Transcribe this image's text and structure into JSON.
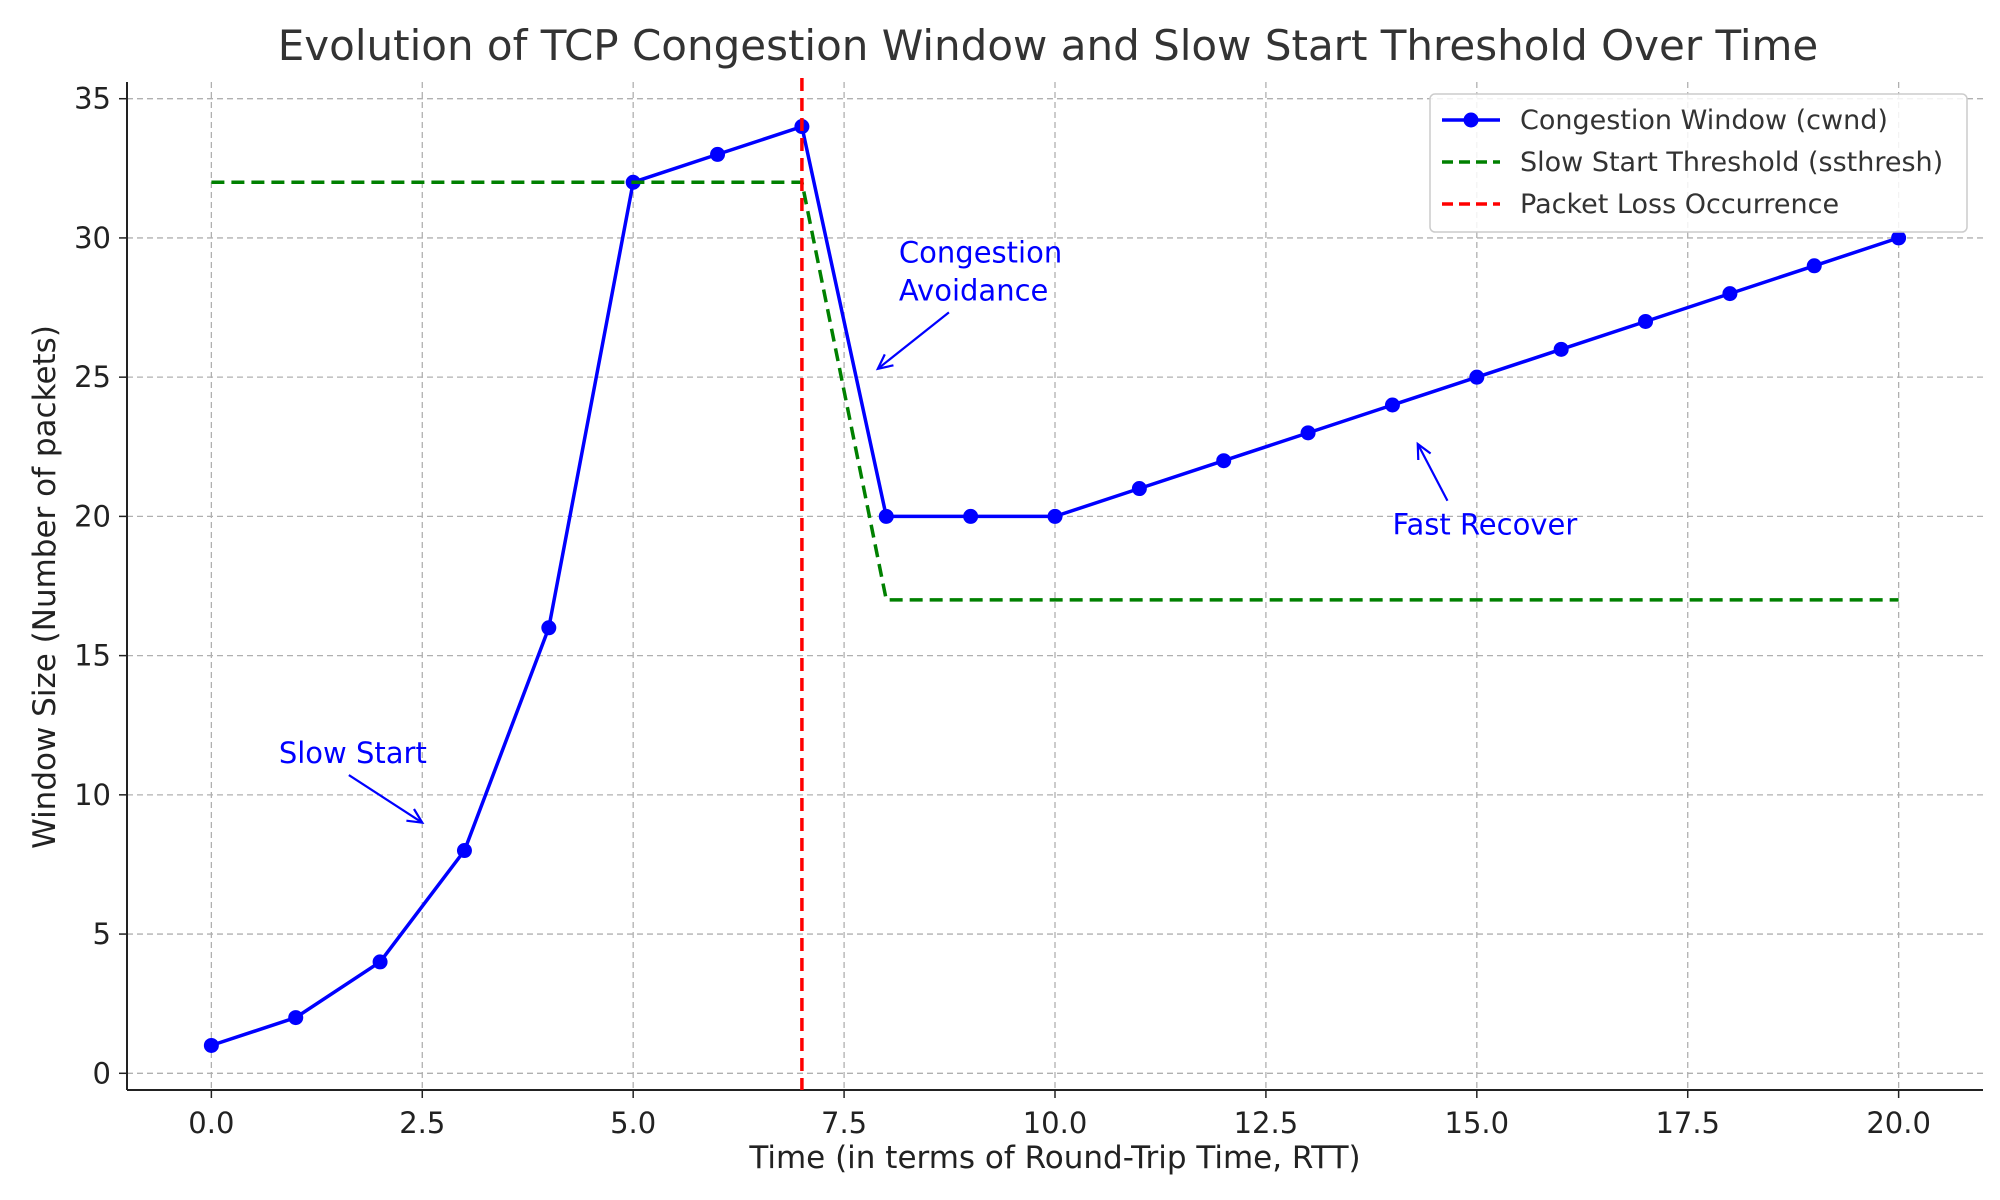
{
  "chart_data": {
    "type": "line",
    "title": "Evolution of TCP Congestion Window and Slow Start Threshold Over Time",
    "xlabel": "Time (in terms of Round-Trip Time, RTT)",
    "ylabel": "Window Size (Number of packets)",
    "xlim": [
      -1,
      21
    ],
    "ylim": [
      -0.6,
      35.6
    ],
    "xticks": [
      0,
      2.5,
      5,
      7.5,
      10,
      12.5,
      15,
      17.5,
      20
    ],
    "xtick_labels": [
      "0.0",
      "2.5",
      "5.0",
      "7.5",
      "10.0",
      "12.5",
      "15.0",
      "17.5",
      "20.0"
    ],
    "yticks": [
      0,
      5,
      10,
      15,
      20,
      25,
      30,
      35
    ],
    "ytick_labels": [
      "0",
      "5",
      "10",
      "15",
      "20",
      "25",
      "30",
      "35"
    ],
    "grid": true,
    "legend_position": "top-right",
    "series": [
      {
        "name": "Congestion Window (cwnd)",
        "color": "#0000ff",
        "style": "solid-with-markers",
        "x": [
          0,
          1,
          2,
          3,
          4,
          5,
          6,
          7,
          8,
          9,
          10,
          11,
          12,
          13,
          14,
          15,
          16,
          17,
          18,
          19,
          20
        ],
        "y": [
          1,
          2,
          4,
          8,
          16,
          32,
          33,
          34,
          20,
          20,
          20,
          21,
          22,
          23,
          24,
          25,
          26,
          27,
          28,
          29,
          30
        ]
      },
      {
        "name": "Slow Start Threshold (ssthresh)",
        "color": "#008000",
        "style": "dashed",
        "x": [
          0,
          1,
          2,
          3,
          4,
          5,
          6,
          7,
          8,
          9,
          10,
          11,
          12,
          13,
          14,
          15,
          16,
          17,
          18,
          19,
          20
        ],
        "y": [
          32,
          32,
          32,
          32,
          32,
          32,
          32,
          32,
          17,
          17,
          17,
          17,
          17,
          17,
          17,
          17,
          17,
          17,
          17,
          17,
          17
        ]
      },
      {
        "name": "Packet Loss Occurrence",
        "color": "#ff0000",
        "style": "dashed-vertical",
        "x": 7
      }
    ],
    "annotations": [
      {
        "lines": [
          "Slow Start"
        ],
        "text_x": 0.8,
        "text_y": 11.5,
        "arrow_x": 2.5,
        "arrow_y": 9,
        "color": "#0000ff",
        "anchor": "start"
      },
      {
        "lines": [
          "Congestion",
          "Avoidance"
        ],
        "text_x": 8.15,
        "text_y": 28.8,
        "arrow_x": 7.9,
        "arrow_y": 25.3,
        "color": "#0000ff",
        "anchor": "start"
      },
      {
        "lines": [
          "Fast Recover"
        ],
        "text_x": 14,
        "text_y": 19.7,
        "arrow_x": 14.3,
        "arrow_y": 22.6,
        "color": "#0000ff",
        "anchor": "start"
      }
    ]
  }
}
